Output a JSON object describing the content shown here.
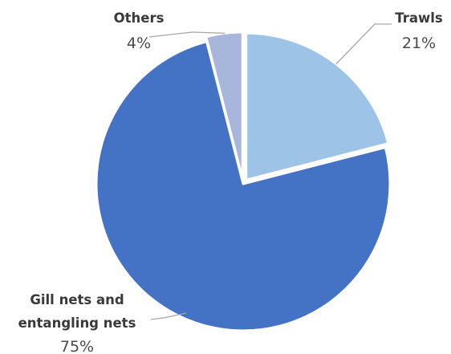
{
  "chart_data": {
    "type": "pie",
    "title": "",
    "slices": [
      {
        "label": "Trawls",
        "label_lines": [
          "Trawls"
        ],
        "value": 21,
        "value_label": "21%",
        "color": "#9dc3e6"
      },
      {
        "label": "Gill nets and entangling nets",
        "label_lines": [
          "Gill nets and",
          "entangling nets"
        ],
        "value": 75,
        "value_label": "75%",
        "color": "#4472c4"
      },
      {
        "label": "Others",
        "label_lines": [
          "Others"
        ],
        "value": 4,
        "value_label": "4%",
        "color": "#a9b6db"
      }
    ],
    "start_angle_deg": 0,
    "direction": "clockwise",
    "exploded": true,
    "legend": "none",
    "data_labels": "outside-with-leader-lines"
  }
}
